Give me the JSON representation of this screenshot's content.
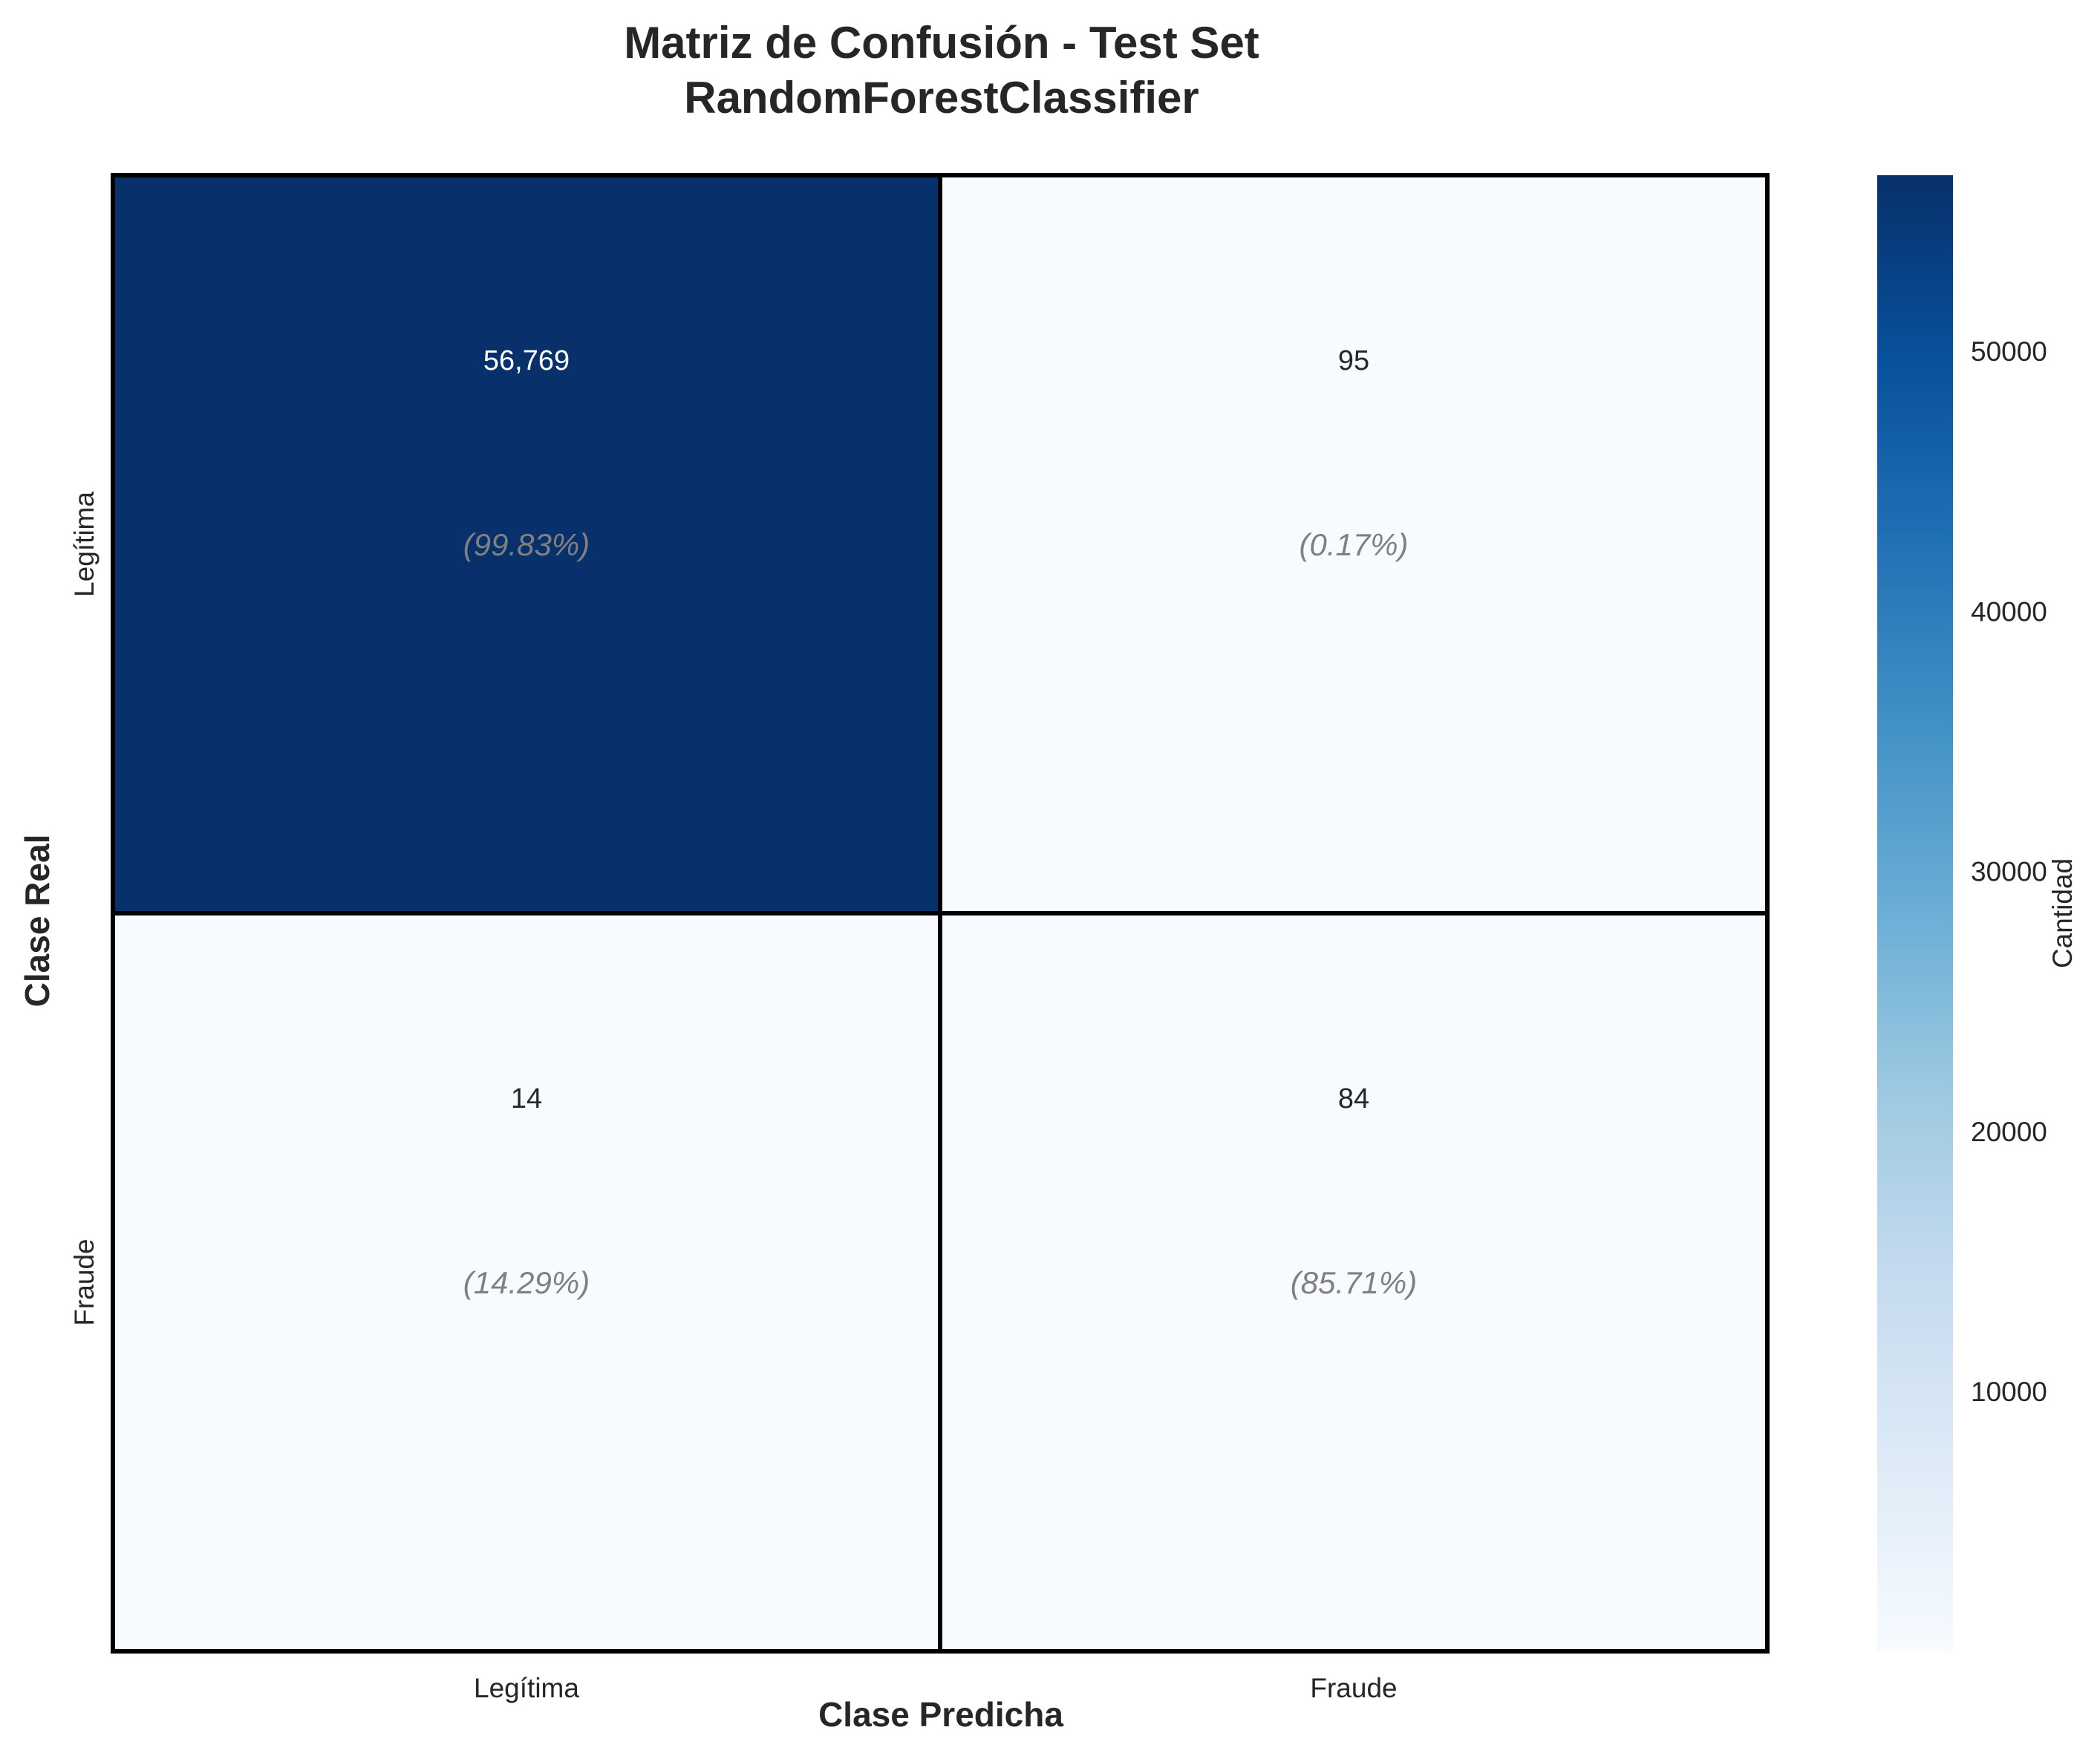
{
  "chart_data": {
    "type": "heatmap",
    "title_line1": "Matriz de Confusión - Test Set",
    "title_line2": "RandomForestClassifier",
    "xlabel": "Clase Predicha",
    "ylabel": "Clase Real",
    "x_categories": [
      "Legítima",
      "Fraude"
    ],
    "y_categories": [
      "Legítima",
      "Fraude"
    ],
    "values": [
      [
        56769,
        95
      ],
      [
        14,
        84
      ]
    ],
    "value_labels": [
      [
        "56,769",
        "95"
      ],
      [
        "14",
        "84"
      ]
    ],
    "percent_labels": [
      [
        "(99.83%)",
        "(0.17%)"
      ],
      [
        "(14.29%)",
        "(85.71%)"
      ]
    ],
    "colorbar": {
      "label": "Cantidad",
      "min": 14,
      "max": 56769,
      "ticks": [
        10000,
        20000,
        30000,
        40000,
        50000
      ],
      "tick_labels": [
        "10000",
        "20000",
        "30000",
        "40000",
        "50000"
      ],
      "colormap": "Blues",
      "colors": [
        "#f7fbff",
        "#deebf7",
        "#c6dbef",
        "#9ecae1",
        "#6baed6",
        "#4292c6",
        "#2171b5",
        "#08519c",
        "#08306b"
      ]
    }
  }
}
